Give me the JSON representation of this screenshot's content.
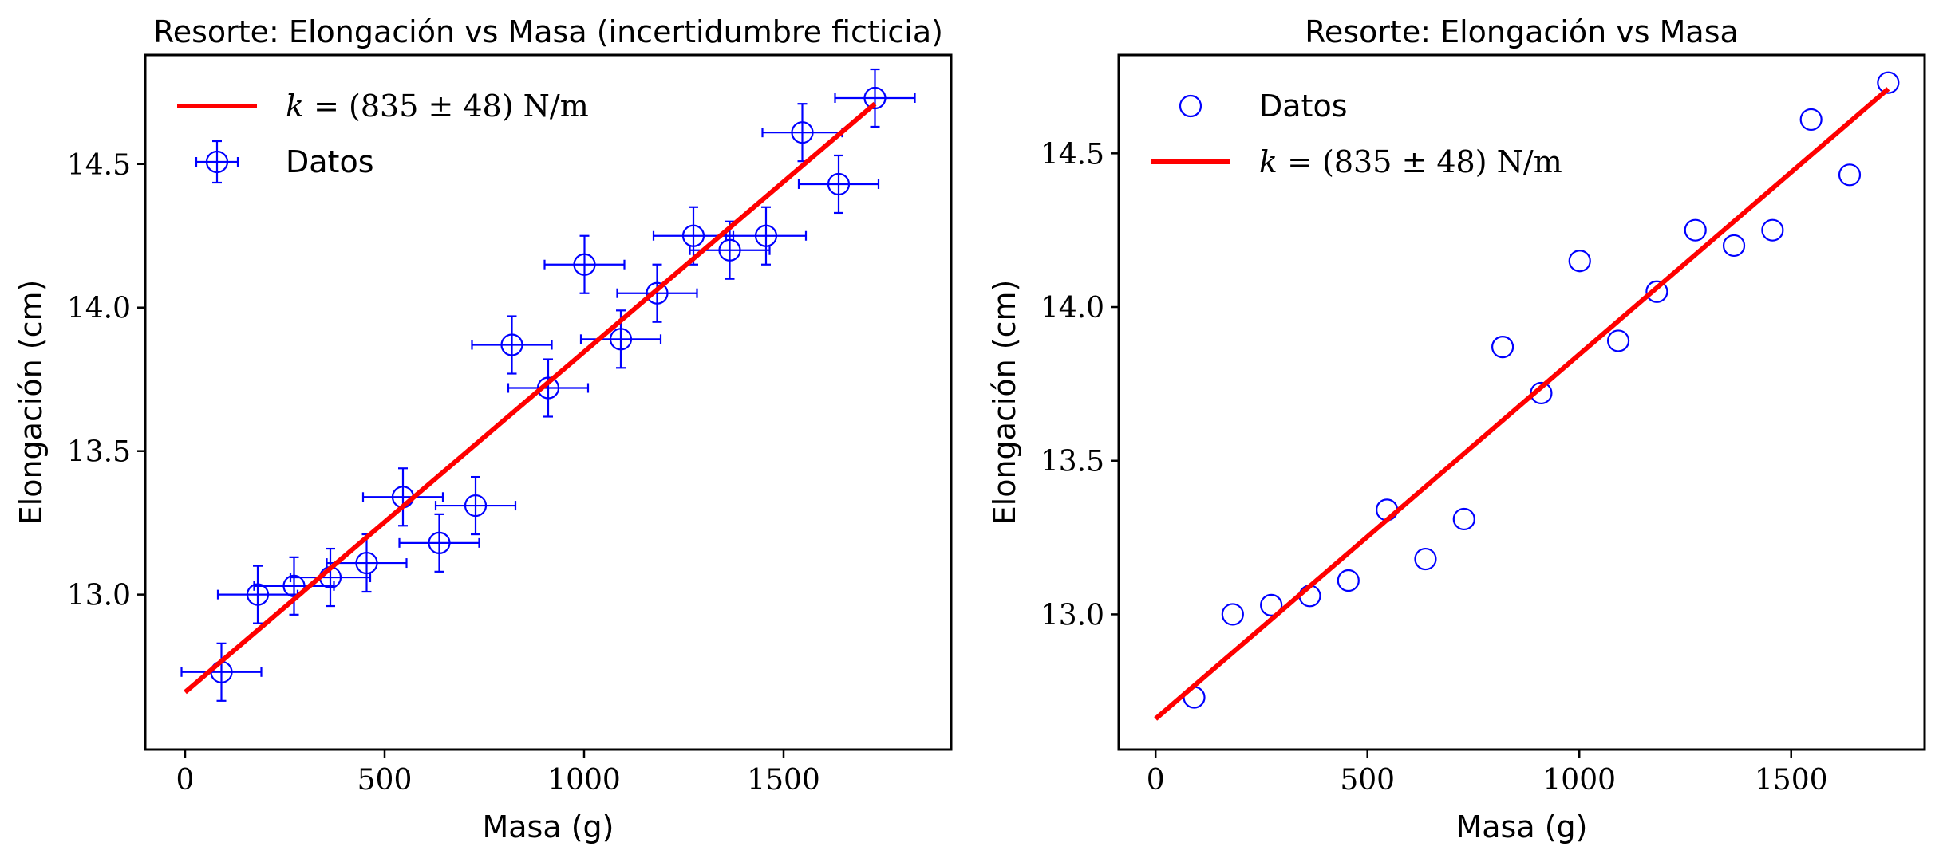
{
  "figure": {
    "background": "#ffffff",
    "data_color": "#0000ff",
    "fit_color": "#ff0000"
  },
  "chart_data": [
    {
      "type": "scatter",
      "title": "Resorte: Elongación vs Masa (incertidumbre ficticia)",
      "xlabel": "Masa (g)",
      "ylabel": "Elongación (cm)",
      "xlim": [
        -100,
        1920
      ],
      "ylim": [
        12.46,
        14.88
      ],
      "xticks": [
        0,
        500,
        1000,
        1500
      ],
      "xtick_labels": [
        "0",
        "500",
        "1000",
        "1500"
      ],
      "yticks": [
        13.0,
        13.5,
        14.0,
        14.5
      ],
      "ytick_labels": [
        "13.0",
        "13.5",
        "14.0",
        "14.5"
      ],
      "grid": false,
      "legend_position": "top-left",
      "legend": [
        {
          "label_prefix": "k",
          "label_suffix": " = (835 ± 48) N/m",
          "marker": "line"
        },
        {
          "label": "Datos",
          "marker": "errorbar-circle"
        }
      ],
      "series": [
        {
          "name": "Datos",
          "kind": "errorbar",
          "x": [
            91,
            182,
            273,
            364,
            455,
            546,
            637,
            728,
            819,
            910,
            1001,
            1092,
            1183,
            1274,
            1365,
            1456,
            1547,
            1638,
            1729
          ],
          "y": [
            12.73,
            13.0,
            13.03,
            13.06,
            13.11,
            13.34,
            13.18,
            13.31,
            13.87,
            13.72,
            14.15,
            13.89,
            14.05,
            14.25,
            14.2,
            14.25,
            14.61,
            14.43,
            14.73
          ],
          "xerr": 100,
          "yerr": 0.1
        },
        {
          "name": "fit",
          "kind": "line",
          "x": [
            0,
            1729
          ],
          "y": [
            12.66,
            14.71
          ]
        }
      ]
    },
    {
      "type": "scatter",
      "title": "Resorte: Elongación vs Masa",
      "xlabel": "Masa (g)",
      "ylabel": "Elongación (cm)",
      "xlim": [
        -87,
        1815
      ],
      "ylim": [
        12.56,
        14.82
      ],
      "xticks": [
        0,
        500,
        1000,
        1500
      ],
      "xtick_labels": [
        "0",
        "500",
        "1000",
        "1500"
      ],
      "yticks": [
        13.0,
        13.5,
        14.0,
        14.5
      ],
      "ytick_labels": [
        "13.0",
        "13.5",
        "14.0",
        "14.5"
      ],
      "grid": false,
      "legend_position": "top-left",
      "legend": [
        {
          "label": "Datos",
          "marker": "circle"
        },
        {
          "label_prefix": "k",
          "label_suffix": " = (835 ± 48) N/m",
          "marker": "line"
        }
      ],
      "series": [
        {
          "name": "Datos",
          "kind": "scatter",
          "x": [
            91,
            182,
            273,
            364,
            455,
            546,
            637,
            728,
            819,
            910,
            1001,
            1092,
            1183,
            1274,
            1365,
            1456,
            1547,
            1638,
            1729
          ],
          "y": [
            12.73,
            13.0,
            13.03,
            13.06,
            13.11,
            13.34,
            13.18,
            13.31,
            13.87,
            13.72,
            14.15,
            13.89,
            14.05,
            14.25,
            14.2,
            14.25,
            14.61,
            14.43,
            14.73
          ]
        },
        {
          "name": "fit",
          "kind": "line",
          "x": [
            0,
            1729
          ],
          "y": [
            12.66,
            14.71
          ]
        }
      ]
    }
  ]
}
